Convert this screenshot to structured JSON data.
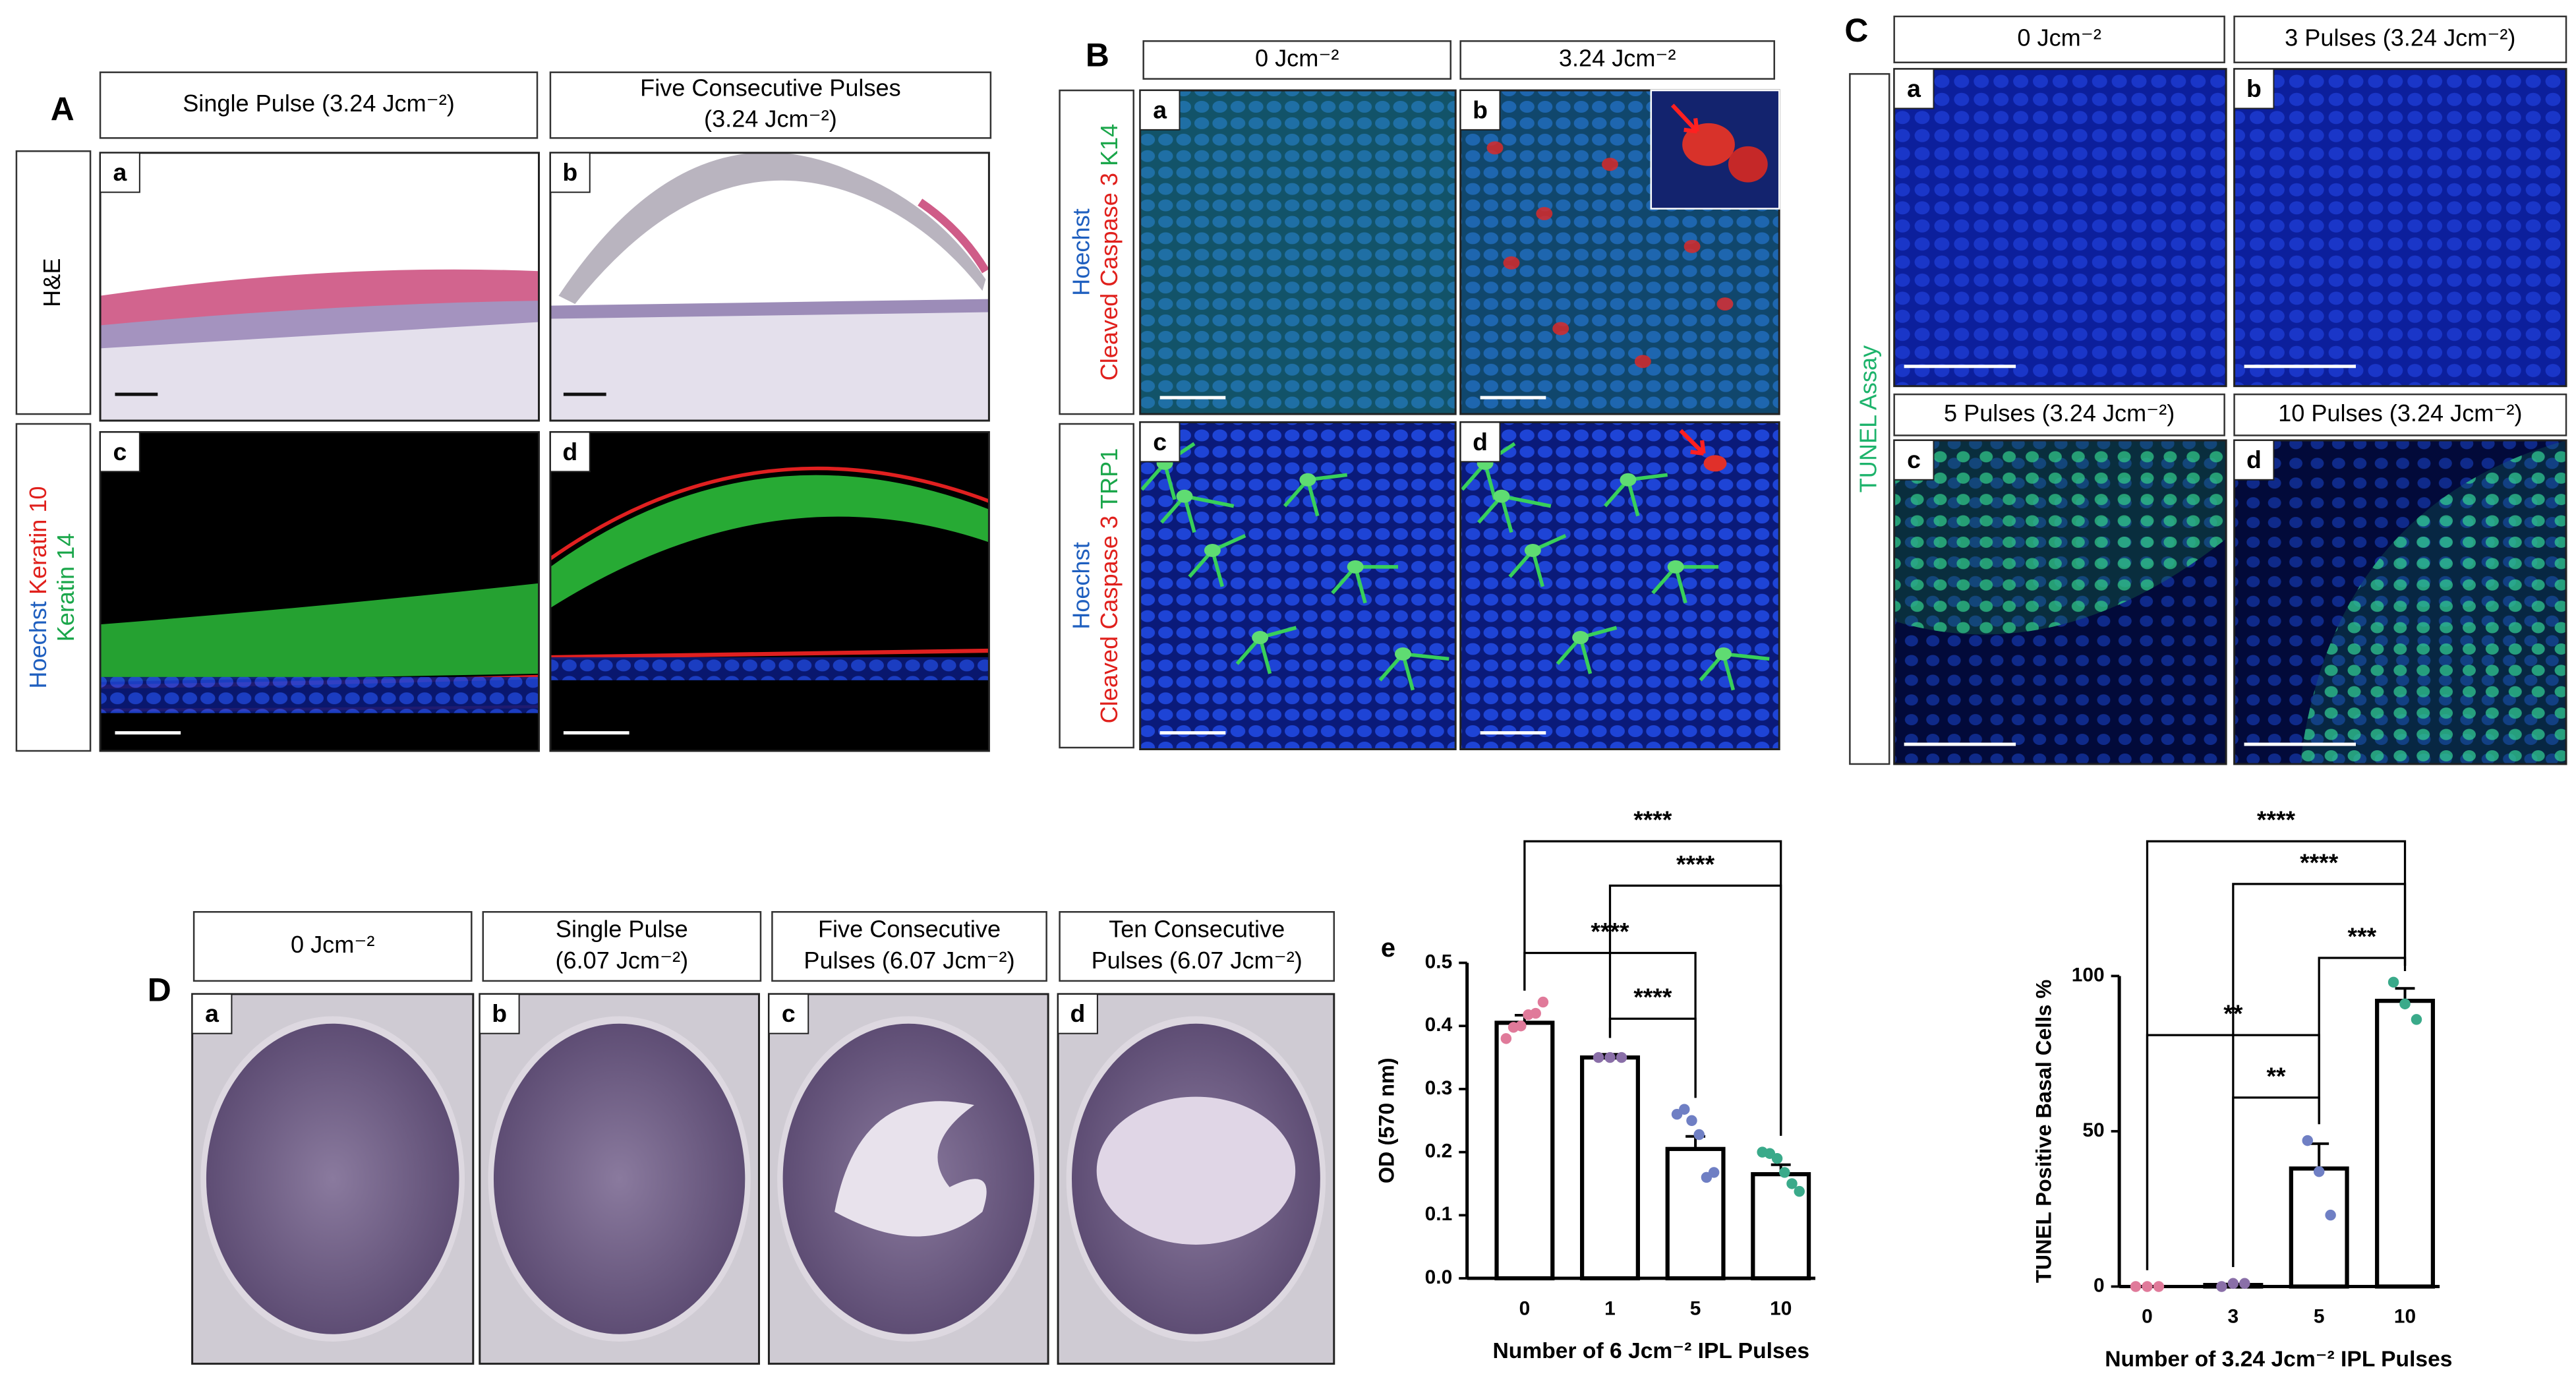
{
  "panels": {
    "A": {
      "label": "A",
      "headers": [
        [
          "Single Pulse (3.24 Jcm⁻²)"
        ],
        [
          "Five Consecutive Pulses",
          "(3.24 Jcm⁻²)"
        ]
      ],
      "row_labels": [
        [
          [
            {
              "text": "H&E",
              "color": "#000000"
            }
          ]
        ],
        [
          [
            {
              "text": "Hoechst",
              "color": "#1f5fbf"
            },
            {
              "text": "Keratin 10",
              "color": "#e0201c"
            }
          ],
          [
            {
              "text": "Keratin 14",
              "color": "#1aa64a"
            }
          ]
        ]
      ],
      "subpanels": [
        "a",
        "b",
        "c",
        "d"
      ]
    },
    "B": {
      "label": "B",
      "headers": [
        [
          "0 Jcm⁻²"
        ],
        [
          "3.24 Jcm⁻²"
        ]
      ],
      "row_labels": [
        [
          [
            {
              "text": "Hoechst",
              "color": "#1f5fbf"
            }
          ],
          [
            {
              "text": "Cleaved Caspase 3",
              "color": "#e0201c"
            },
            {
              "text": "K14",
              "color": "#1aa64a"
            }
          ]
        ],
        [
          [
            {
              "text": "Hoechst",
              "color": "#1f5fbf"
            }
          ],
          [
            {
              "text": "Cleaved Caspase 3",
              "color": "#e0201c"
            },
            {
              "text": "TRP1",
              "color": "#1aa64a"
            }
          ]
        ]
      ],
      "subpanels": [
        "a",
        "b",
        "c",
        "d"
      ]
    },
    "C": {
      "label": "C",
      "headers": [
        [
          "0 Jcm⁻²"
        ],
        [
          "3 Pulses (3.24 Jcm⁻²)"
        ],
        [
          "5 Pulses (3.24 Jcm⁻²)"
        ],
        [
          "10 Pulses (3.24 Jcm⁻²)"
        ]
      ],
      "row_labels": [
        [
          [
            {
              "text": "TUNEL Assay",
              "color": "#1db36b"
            }
          ]
        ]
      ],
      "subpanels": [
        "a",
        "b",
        "c",
        "d"
      ]
    },
    "D": {
      "label": "D",
      "headers": [
        [
          "0 Jcm⁻²"
        ],
        [
          "Single Pulse",
          "(6.07 Jcm⁻²)"
        ],
        [
          "Five Consecutive",
          "Pulses (6.07 Jcm⁻²)"
        ],
        [
          "Ten Consecutive",
          "Pulses (6.07 Jcm⁻²)"
        ]
      ],
      "subpanels": [
        "a",
        "b",
        "c",
        "d"
      ]
    }
  },
  "chart_data": [
    {
      "type": "bar",
      "title": "e",
      "x_label": "Number of 6 Jcm⁻² IPL Pulses",
      "y_label": "OD (570 nm)",
      "categories": [
        "0",
        "1",
        "5",
        "10"
      ],
      "values": [
        0.405,
        0.35,
        0.205,
        0.165
      ],
      "errors": [
        0.012,
        0.005,
        0.02,
        0.015
      ],
      "points": [
        [
          0.38,
          0.39,
          0.4,
          0.41,
          0.42,
          0.43
        ],
        [
          0.35,
          0.35,
          0.35
        ],
        [
          0.26,
          0.26,
          0.25,
          0.22,
          0.16,
          0.16
        ],
        [
          0.2,
          0.19,
          0.19,
          0.16,
          0.15,
          0.13
        ]
      ],
      "point_colors": [
        "#e07a9a",
        "#8a6fa8",
        "#6f7fc4",
        "#3aaa8a"
      ],
      "color": "#ffffff",
      "ylim": [
        0,
        0.5
      ],
      "yticks": [
        {
          "value": 0,
          "label": "0.0"
        },
        0.1,
        0.2,
        0.3,
        0.4,
        0.5
      ],
      "annotations": [
        {
          "from": 0,
          "to": 3,
          "label": "****"
        },
        {
          "from": 1,
          "to": 3,
          "label": "****"
        },
        {
          "from": 0,
          "to": 2,
          "label": "****"
        },
        {
          "from": 1,
          "to": 2,
          "label": "****"
        }
      ]
    },
    {
      "type": "bar",
      "x_label": "Number of 3.24 Jcm⁻² IPL Pulses",
      "y_label": "TUNEL Positive Basal Cells %",
      "categories": [
        "0",
        "3",
        "5",
        "10"
      ],
      "values": [
        0,
        0.5,
        38,
        92
      ],
      "errors": [
        0,
        0.3,
        8,
        4
      ],
      "points": [
        [
          0,
          0,
          0
        ],
        [
          0,
          1,
          1
        ],
        [
          47,
          37,
          23
        ],
        [
          98,
          91,
          86
        ]
      ],
      "point_colors": [
        "#e07a9a",
        "#8a6fa8",
        "#6f7fc4",
        "#3aaa8a"
      ],
      "color": "#ffffff",
      "ylim": [
        0,
        100
      ],
      "yticks": [
        0,
        50,
        100
      ],
      "annotations": [
        {
          "from": 0,
          "to": 3,
          "label": "****"
        },
        {
          "from": 1,
          "to": 3,
          "label": "****"
        },
        {
          "from": 2,
          "to": 3,
          "label": "***"
        },
        {
          "from": 0,
          "to": 2,
          "label": "**"
        },
        {
          "from": 1,
          "to": 2,
          "label": "**"
        }
      ]
    }
  ]
}
